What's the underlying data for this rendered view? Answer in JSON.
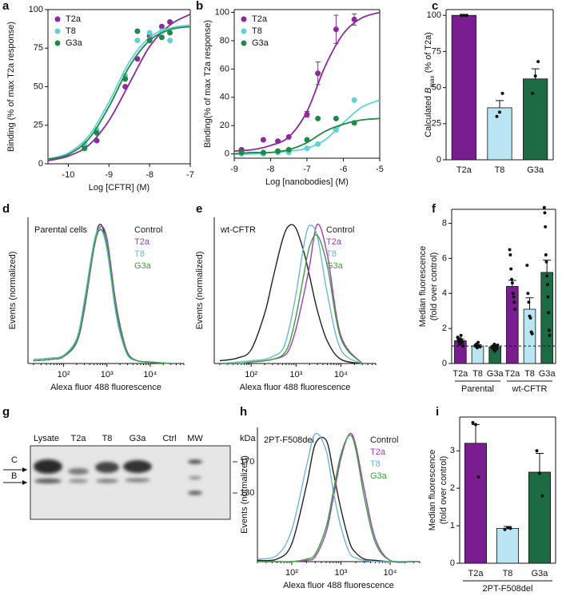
{
  "chart_data": [
    {
      "panel": "a",
      "type": "scatter",
      "xlabel": "Log [CFTR] (M)",
      "ylabel": "Binding (% of max T2a response)",
      "xlim": [
        -10.5,
        -7
      ],
      "xticks": [
        -10,
        -9,
        -8,
        -7
      ],
      "ylim": [
        0,
        100
      ],
      "yticks": [
        0,
        25,
        50,
        75,
        100
      ],
      "legend": "upper left",
      "x": [
        -9.6,
        -9.3,
        -8.6,
        -8.3,
        -8,
        -7.7,
        -7.5
      ],
      "curve_x": [
        -10.5,
        -10,
        -9.5,
        -9,
        -8.5,
        -8,
        -7.5,
        -7
      ],
      "series": [
        {
          "name": "T2a",
          "color": "#8b2a9b",
          "values": [
            11,
            15,
            50,
            68,
            83,
            89,
            92
          ],
          "curve": [
            2,
            5,
            12,
            28,
            52,
            76,
            90,
            97
          ]
        },
        {
          "name": "T8",
          "color": "#5fd3d3",
          "values": [
            13,
            22,
            57,
            80,
            85,
            86,
            80
          ],
          "curve": [
            3,
            7,
            18,
            40,
            66,
            82,
            88,
            90
          ]
        },
        {
          "name": "G3a",
          "color": "#1e8a46",
          "values": [
            10,
            20,
            55,
            86,
            80,
            82,
            85
          ],
          "curve": [
            3,
            6,
            16,
            37,
            63,
            80,
            87,
            89
          ]
        }
      ]
    },
    {
      "panel": "b",
      "type": "scatter",
      "xlabel": "Log [nanobodies] (M)",
      "ylabel": "Binding(% of max T2a response)",
      "xlim": [
        -9,
        -5
      ],
      "xticks": [
        -9,
        -8,
        -7,
        -6,
        -5
      ],
      "ylim": [
        -3,
        102
      ],
      "yticks": [
        0,
        20,
        40,
        60,
        80,
        100
      ],
      "legend": "upper left",
      "x": [
        -8.8,
        -8.2,
        -7.8,
        -7.5,
        -7,
        -6.7,
        -6.2,
        -5.7
      ],
      "curve_x": [
        -9,
        -8.5,
        -8,
        -7.5,
        -7,
        -6.5,
        -6,
        -5.5,
        -5
      ],
      "series": [
        {
          "name": "T2a",
          "color": "#8b2a9b",
          "values": [
            3,
            10,
            9,
            12,
            28,
            57,
            88,
            95
          ],
          "errors": [
            0,
            0,
            0,
            0,
            2,
            8,
            10,
            4
          ],
          "curve": [
            2,
            3,
            6,
            12,
            30,
            62,
            85,
            96,
            100
          ]
        },
        {
          "name": "T8",
          "color": "#5fd3d3",
          "values": [
            0,
            0,
            1,
            1,
            4,
            7,
            17,
            38
          ],
          "curve": [
            0,
            0,
            1,
            2,
            4,
            10,
            22,
            33,
            38
          ]
        },
        {
          "name": "G3a",
          "color": "#1e8a46",
          "values": [
            1,
            1,
            2,
            3,
            10,
            25,
            25,
            22
          ],
          "curve": [
            0,
            1,
            1,
            3,
            8,
            16,
            21,
            24,
            25
          ]
        }
      ]
    },
    {
      "panel": "c",
      "type": "bar",
      "ylabel_parts": [
        "Calculated ",
        "B",
        "max",
        " (% of T2a)"
      ],
      "categories": [
        "T2a",
        "T8",
        "G3a"
      ],
      "values": [
        100,
        36,
        56
      ],
      "errors": [
        0,
        5,
        7
      ],
      "points": [
        [
          100,
          100,
          100
        ],
        [
          30,
          33,
          46
        ],
        [
          46,
          58,
          68
        ]
      ],
      "colors": [
        "#7a1d91",
        "#b9e6f2",
        "#1d6b44"
      ],
      "ylim": [
        0,
        104
      ],
      "yticks": [
        0,
        25,
        50,
        75,
        100
      ]
    },
    {
      "panel": "d",
      "type": "line",
      "xscale": "log",
      "annotation": "Parental cells",
      "xlabel": "Alexa fluor 488 fluorescence",
      "ylabel": "Events (normalized)",
      "xlim": [
        15,
        60000
      ],
      "xticks": [
        {
          "value": 100,
          "label": "10²"
        },
        {
          "value": 1000,
          "label": "10³"
        },
        {
          "value": 10000,
          "label": "10⁴"
        }
      ],
      "ylim": [
        0,
        1.05
      ],
      "legend": "upper right",
      "x": [
        20,
        50,
        100,
        200,
        300,
        500,
        700,
        1000,
        1500,
        2000,
        3000,
        5000,
        10000,
        30000
      ],
      "series": [
        {
          "name": "Control",
          "color": "#222222",
          "values": [
            0.02,
            0.03,
            0.05,
            0.17,
            0.42,
            0.85,
            1.0,
            0.85,
            0.45,
            0.25,
            0.07,
            0.02,
            0.01,
            0
          ]
        },
        {
          "name": "T2a",
          "color": "#a43bb5",
          "values": [
            0.02,
            0.03,
            0.05,
            0.15,
            0.38,
            0.82,
            0.98,
            0.9,
            0.5,
            0.28,
            0.08,
            0.02,
            0.01,
            0
          ]
        },
        {
          "name": "T8",
          "color": "#6fb4da",
          "values": [
            0.03,
            0.04,
            0.06,
            0.18,
            0.45,
            0.87,
            0.97,
            0.82,
            0.42,
            0.22,
            0.06,
            0.02,
            0.01,
            0
          ]
        },
        {
          "name": "G3a",
          "color": "#39a23c",
          "values": [
            0.02,
            0.03,
            0.05,
            0.16,
            0.4,
            0.83,
            0.96,
            0.86,
            0.47,
            0.26,
            0.07,
            0.02,
            0.01,
            0
          ]
        }
      ]
    },
    {
      "panel": "e",
      "type": "line",
      "xscale": "log",
      "annotation": "wt-CFTR",
      "xlabel": "Alexa fluor 488 fluorescence",
      "ylabel": "Events (normalized)",
      "xlim": [
        15,
        60000
      ],
      "xticks": [
        {
          "value": 100,
          "label": "10²"
        },
        {
          "value": 1000,
          "label": "10³"
        },
        {
          "value": 10000,
          "label": "10⁴"
        }
      ],
      "ylim": [
        0,
        1.05
      ],
      "legend": "upper right",
      "x": [
        20,
        50,
        100,
        200,
        300,
        500,
        700,
        1000,
        1500,
        2000,
        3000,
        5000,
        10000,
        30000
      ],
      "series": [
        {
          "name": "Control",
          "color": "#222222",
          "values": [
            0.02,
            0.04,
            0.1,
            0.36,
            0.6,
            0.89,
            0.99,
            0.97,
            0.8,
            0.63,
            0.38,
            0.16,
            0.03,
            0
          ]
        },
        {
          "name": "T2a",
          "color": "#a43bb5",
          "values": [
            0,
            0,
            0.01,
            0.02,
            0.03,
            0.05,
            0.1,
            0.25,
            0.5,
            0.7,
            1.0,
            0.78,
            0.2,
            0
          ]
        },
        {
          "name": "T8",
          "color": "#6fb4da",
          "values": [
            0,
            0.01,
            0.02,
            0.03,
            0.05,
            0.1,
            0.25,
            0.5,
            0.85,
            0.99,
            0.91,
            0.5,
            0.1,
            0
          ]
        },
        {
          "name": "G3a",
          "color": "#39a23c",
          "values": [
            0,
            0,
            0.01,
            0.02,
            0.03,
            0.06,
            0.14,
            0.34,
            0.64,
            0.84,
            0.92,
            0.7,
            0.18,
            0
          ]
        }
      ]
    },
    {
      "panel": "f",
      "type": "bar",
      "ylabel": [
        "Median fluorescence",
        "(fold over control)"
      ],
      "categories": [
        "T2a",
        "T8",
        "G3a",
        "T2a",
        "T8",
        "G3a"
      ],
      "groups": [
        "Parental",
        "wt-CFTR"
      ],
      "values": [
        1.3,
        1.0,
        0.95,
        4.4,
        3.1,
        5.2
      ],
      "errors": [
        0.1,
        0.08,
        0.08,
        0.35,
        0.65,
        0.7
      ],
      "points": [
        [
          1.5,
          1.3,
          1.2,
          1.1,
          1.4,
          1.6,
          1.3,
          1.2,
          1.0
        ],
        [
          1.0,
          1.1,
          0.9,
          1.2,
          1.0,
          0.95
        ],
        [
          0.9,
          1.0,
          0.8,
          1.1,
          0.7,
          0.95,
          1.0,
          0.85,
          1.05
        ],
        [
          6.5,
          6.2,
          5.4,
          4.8,
          4.6,
          4.0,
          3.8,
          3.5,
          3.1
        ],
        [
          5.6,
          4.0,
          3.5,
          2.7,
          2.6,
          1.8,
          1.7
        ],
        [
          8.9,
          8.6,
          7.8,
          6.2,
          5.8,
          5.0,
          4.5,
          3.8,
          2.9,
          1.9,
          1.6
        ]
      ],
      "colors": [
        "#7a1d91",
        "#b9e6f2",
        "#1d6b44",
        "#7a1d91",
        "#b9e6f2",
        "#1d6b44"
      ],
      "reference_line": 1,
      "ylim": [
        0,
        8.8
      ],
      "yticks": [
        0,
        2,
        4,
        6,
        8
      ]
    },
    {
      "panel": "h",
      "type": "line",
      "xscale": "log",
      "annotation": "2PT-F508del",
      "xlabel": "Alexa fluor 488 fluorescence",
      "ylabel": "Events (normalized)",
      "xlim": [
        20,
        40000
      ],
      "xticks": [
        {
          "value": 100,
          "label": "10²"
        },
        {
          "value": 1000,
          "label": "10³"
        },
        {
          "value": 10000,
          "label": "10⁴"
        }
      ],
      "ylim": [
        0,
        1.05
      ],
      "legend": "upper right",
      "x": [
        20,
        50,
        100,
        200,
        300,
        500,
        700,
        1000,
        1500,
        2000,
        3000,
        5000,
        10000,
        30000
      ],
      "series": [
        {
          "name": "Control",
          "color": "#222222",
          "values": [
            0.01,
            0.02,
            0.14,
            0.6,
            0.92,
            0.95,
            0.7,
            0.41,
            0.15,
            0.07,
            0.02,
            0.01,
            0,
            0
          ]
        },
        {
          "name": "T2a",
          "color": "#a43bb5",
          "values": [
            0,
            0,
            0,
            0.01,
            0.04,
            0.23,
            0.5,
            0.81,
            1.0,
            0.91,
            0.56,
            0.18,
            0.01,
            0
          ]
        },
        {
          "name": "T8",
          "color": "#6fb4da",
          "values": [
            0.02,
            0.05,
            0.25,
            0.75,
            1.0,
            0.87,
            0.55,
            0.27,
            0.07,
            0.03,
            0.01,
            0,
            0,
            0
          ]
        },
        {
          "name": "G3a",
          "color": "#39a23c",
          "values": [
            0,
            0,
            0,
            0.02,
            0.06,
            0.27,
            0.55,
            0.84,
            0.99,
            0.88,
            0.5,
            0.15,
            0.01,
            0
          ]
        }
      ]
    },
    {
      "panel": "i",
      "type": "bar",
      "ylabel": [
        "Median fluorescence",
        "(fold over control)"
      ],
      "categories": [
        "T2a",
        "T8",
        "G3a"
      ],
      "groups": [
        "2PT-F508del"
      ],
      "values": [
        3.2,
        0.93,
        2.43
      ],
      "errors": [
        0.5,
        0.05,
        0.5
      ],
      "points": [
        [
          3.75,
          3.7,
          2.3
        ],
        [
          0.9,
          0.95,
          0.93
        ],
        [
          3.0,
          2.4,
          1.8
        ]
      ],
      "colors": [
        "#7a1d91",
        "#b9e6f2",
        "#1d6b44"
      ],
      "ylim": [
        0,
        3.9
      ],
      "yticks": [
        0,
        1,
        2,
        3
      ]
    }
  ],
  "blot": {
    "panel": "g",
    "lanes": [
      "Lysate",
      "T2a",
      "T8",
      "G3a",
      "Ctrl",
      "MW"
    ],
    "unit": "kDa",
    "markers": [
      170,
      130
    ],
    "bands": [
      "C",
      "B"
    ]
  }
}
